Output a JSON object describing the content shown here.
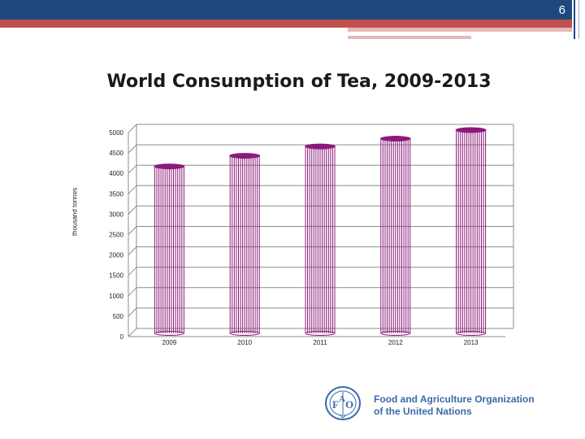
{
  "slide": {
    "number": "6"
  },
  "logo": {
    "line1": "Food and Agriculture Organization",
    "line2": "of the United Nations",
    "emblem_text": "FIAT PANIS",
    "color": "#3b6aa8"
  },
  "chart_data": {
    "type": "bar",
    "title": "World Consumption of Tea, 2009-2013",
    "xlabel": "",
    "ylabel": "thousand tonnes",
    "categories": [
      "2009",
      "2010",
      "2011",
      "2012",
      "2013"
    ],
    "values": [
      4050,
      4310,
      4540,
      4730,
      4940
    ],
    "ylim": [
      0,
      5000
    ],
    "yticks": [
      "0",
      "500",
      "1000",
      "1500",
      "2000",
      "2500",
      "3000",
      "3500",
      "4000",
      "4500",
      "5000"
    ],
    "grid": true,
    "bar_color": "#8b1a7a",
    "legend": "none"
  }
}
